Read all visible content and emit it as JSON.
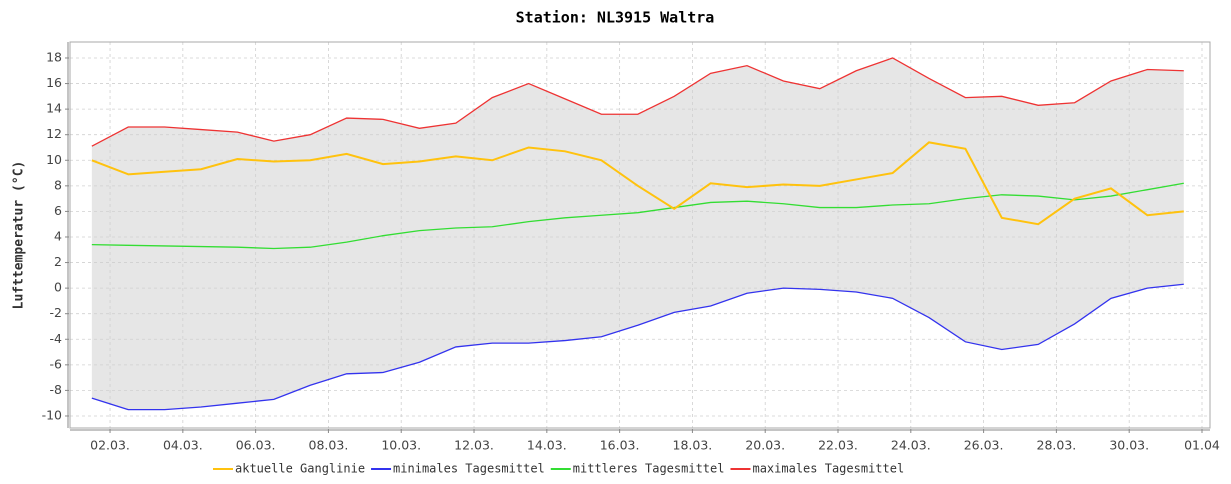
{
  "chart_data": {
    "type": "line",
    "title": "Station: NL3915 Waltra",
    "y_label": "Lufttemperatur (°C)",
    "x": [
      1.5,
      2.5,
      3.5,
      4.5,
      5.5,
      6.5,
      7.5,
      8.5,
      9.5,
      10.5,
      11.5,
      12.5,
      13.5,
      14.5,
      15.5,
      16.5,
      17.5,
      18.5,
      19.5,
      20.5,
      21.5,
      22.5,
      23.5,
      24.5,
      25.5,
      26.5,
      27.5,
      28.5,
      29.5,
      30.5,
      31.5
    ],
    "series": [
      {
        "name": "aktuelle Ganglinie",
        "color": "#ffc20e",
        "values": [
          10.0,
          8.9,
          9.1,
          9.3,
          10.1,
          9.9,
          10.0,
          10.5,
          9.7,
          9.9,
          10.3,
          10.0,
          11.0,
          10.7,
          10.0,
          8.0,
          6.2,
          8.2,
          7.9,
          8.1,
          8.0,
          8.5,
          9.0,
          11.4,
          10.9,
          5.5,
          5.0,
          7.0,
          7.8,
          5.7,
          6.0
        ]
      },
      {
        "name": "minimales Tagesmittel",
        "color": "#3333ee",
        "values": [
          -8.6,
          -9.5,
          -9.5,
          -9.3,
          -9.0,
          -8.7,
          -7.6,
          -6.7,
          -6.6,
          -5.8,
          -4.6,
          -4.3,
          -4.3,
          -4.1,
          -3.8,
          -2.9,
          -1.9,
          -1.4,
          -0.4,
          0.0,
          -0.1,
          -0.3,
          -0.8,
          -2.3,
          -4.2,
          -4.8,
          -4.4,
          -2.8,
          -0.8,
          0.0,
          0.3
        ]
      },
      {
        "name": "mittleres Tagesmittel",
        "color": "#33dd33",
        "values": [
          3.4,
          3.35,
          3.3,
          3.25,
          3.2,
          3.1,
          3.2,
          3.6,
          4.1,
          4.5,
          4.7,
          4.8,
          5.2,
          5.5,
          5.7,
          5.9,
          6.3,
          6.7,
          6.8,
          6.6,
          6.3,
          6.3,
          6.5,
          6.6,
          7.0,
          7.3,
          7.2,
          6.9,
          7.2,
          7.7,
          8.2
        ]
      },
      {
        "name": "maximales Tagesmittel",
        "color": "#ee3333",
        "values": [
          11.1,
          12.6,
          12.6,
          12.4,
          12.2,
          11.5,
          12.0,
          13.3,
          13.2,
          12.5,
          12.9,
          14.9,
          16.0,
          14.8,
          13.6,
          13.6,
          15.0,
          16.8,
          17.4,
          16.2,
          15.6,
          17.0,
          18.0,
          16.4,
          14.9,
          15.0,
          14.3,
          14.5,
          16.2,
          17.1,
          17.0
        ]
      }
    ],
    "band_color": "#e6e6e6",
    "xlim": [
      0.9,
      32.22
    ],
    "xticks": [
      {
        "value": 2,
        "label": "02.03."
      },
      {
        "value": 4,
        "label": "04.03."
      },
      {
        "value": 6,
        "label": "06.03."
      },
      {
        "value": 8,
        "label": "08.03."
      },
      {
        "value": 10,
        "label": "10.03."
      },
      {
        "value": 12,
        "label": "12.03."
      },
      {
        "value": 14,
        "label": "14.03."
      },
      {
        "value": 16,
        "label": "16.03."
      },
      {
        "value": 18,
        "label": "18.03."
      },
      {
        "value": 20,
        "label": "20.03."
      },
      {
        "value": 22,
        "label": "22.03."
      },
      {
        "value": 24,
        "label": "24.03."
      },
      {
        "value": 26,
        "label": "26.03."
      },
      {
        "value": 28,
        "label": "28.03."
      },
      {
        "value": 30,
        "label": "30.03."
      },
      {
        "value": 32,
        "label": "01.04"
      }
    ],
    "ylim": [
      -10.94,
      19.25
    ],
    "yticks": [
      -10,
      -8,
      -6,
      -4,
      -2,
      0,
      2,
      4,
      6,
      8,
      10,
      12,
      14,
      16,
      18
    ],
    "grid": true,
    "legend": "bottom"
  }
}
